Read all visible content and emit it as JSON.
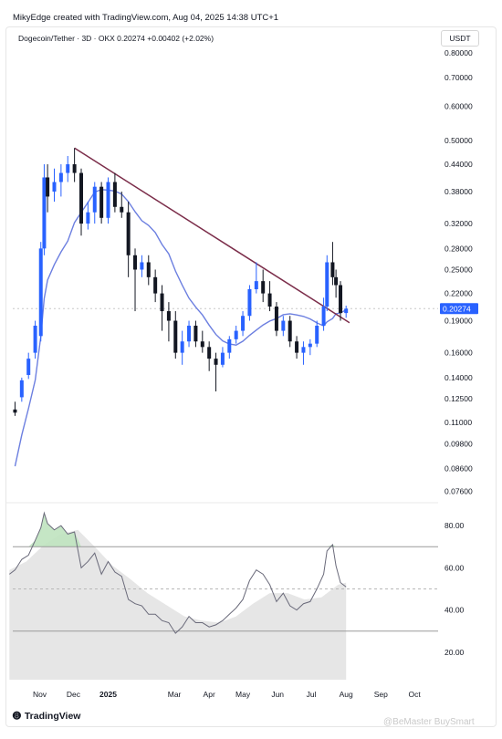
{
  "header": {
    "text": "MikyEdge created with TradingView.com, Aug 04, 2025 14:38 UTC+1"
  },
  "symbol": {
    "text": "Dogecoin/Tether · 3D · OKX  0.20274  +0.00402 (+2.02%)"
  },
  "currency": {
    "label": "USDT"
  },
  "price_axis": {
    "labels": [
      "0.80000",
      "0.70000",
      "0.60000",
      "0.50000",
      "0.44000",
      "0.38000",
      "0.32000",
      "0.28000",
      "0.25000",
      "0.22000",
      "0.19000",
      "0.16000",
      "0.14000",
      "0.12500",
      "0.11000",
      "0.09800",
      "0.08600",
      "0.07600"
    ],
    "current": "0.20274"
  },
  "rsi_axis": {
    "labels": [
      "80.00",
      "60.00",
      "40.00",
      "20.00"
    ]
  },
  "time_axis": {
    "labels": [
      "Nov",
      "Dec",
      "2025",
      "Mar",
      "Apr",
      "May",
      "Jun",
      "Jul",
      "Aug",
      "Sep",
      "Oct"
    ]
  },
  "footer": {
    "brand": "TradingView",
    "watermark": "@BeMaster BuySmart"
  },
  "colors": {
    "up": "#2962ff",
    "down": "#131722",
    "trendline": "#7b2d4a",
    "ma": "#6c7fe0",
    "rsi_line": "#6a6a7a",
    "rsi_fill": "#e6e6e6",
    "rsi_ob_fill": "#bfe3bf"
  },
  "chart_data": [
    {
      "type": "candlestick",
      "title": "Dogecoin/Tether · 3D · OKX",
      "scale": "log",
      "ylim": [
        0.0726,
        0.84
      ],
      "x_range": [
        "2024-10-08",
        "2025-10-22"
      ],
      "candles_approx": [
        {
          "d": "2024-10-10",
          "o": 0.118,
          "h": 0.123,
          "l": 0.114,
          "c": 0.116
        },
        {
          "d": "2024-10-16",
          "o": 0.126,
          "h": 0.14,
          "l": 0.123,
          "c": 0.138
        },
        {
          "d": "2024-10-22",
          "o": 0.142,
          "h": 0.16,
          "l": 0.139,
          "c": 0.155
        },
        {
          "d": "2024-10-28",
          "o": 0.16,
          "h": 0.19,
          "l": 0.155,
          "c": 0.185
        },
        {
          "d": "2024-11-02",
          "o": 0.175,
          "h": 0.29,
          "l": 0.17,
          "c": 0.28
        },
        {
          "d": "2024-11-05",
          "o": 0.28,
          "h": 0.44,
          "l": 0.27,
          "c": 0.41
        },
        {
          "d": "2024-11-08",
          "o": 0.41,
          "h": 0.44,
          "l": 0.34,
          "c": 0.37
        },
        {
          "d": "2024-11-14",
          "o": 0.38,
          "h": 0.43,
          "l": 0.36,
          "c": 0.4
        },
        {
          "d": "2024-11-20",
          "o": 0.4,
          "h": 0.44,
          "l": 0.37,
          "c": 0.42
        },
        {
          "d": "2024-11-26",
          "o": 0.42,
          "h": 0.46,
          "l": 0.4,
          "c": 0.44
        },
        {
          "d": "2024-12-02",
          "o": 0.44,
          "h": 0.48,
          "l": 0.4,
          "c": 0.42
        },
        {
          "d": "2024-12-08",
          "o": 0.42,
          "h": 0.43,
          "l": 0.3,
          "c": 0.32
        },
        {
          "d": "2024-12-14",
          "o": 0.32,
          "h": 0.36,
          "l": 0.31,
          "c": 0.34
        },
        {
          "d": "2024-12-20",
          "o": 0.34,
          "h": 0.4,
          "l": 0.32,
          "c": 0.39
        },
        {
          "d": "2024-12-26",
          "o": 0.39,
          "h": 0.4,
          "l": 0.32,
          "c": 0.33
        },
        {
          "d": "2025-01-01",
          "o": 0.33,
          "h": 0.41,
          "l": 0.32,
          "c": 0.4
        },
        {
          "d": "2025-01-07",
          "o": 0.4,
          "h": 0.42,
          "l": 0.34,
          "c": 0.35
        },
        {
          "d": "2025-01-13",
          "o": 0.35,
          "h": 0.38,
          "l": 0.33,
          "c": 0.34
        },
        {
          "d": "2025-01-19",
          "o": 0.34,
          "h": 0.36,
          "l": 0.24,
          "c": 0.27
        },
        {
          "d": "2025-01-25",
          "o": 0.27,
          "h": 0.28,
          "l": 0.2,
          "c": 0.25
        },
        {
          "d": "2025-01-31",
          "o": 0.25,
          "h": 0.27,
          "l": 0.24,
          "c": 0.26
        },
        {
          "d": "2025-02-06",
          "o": 0.26,
          "h": 0.27,
          "l": 0.23,
          "c": 0.24
        },
        {
          "d": "2025-02-12",
          "o": 0.24,
          "h": 0.25,
          "l": 0.21,
          "c": 0.22
        },
        {
          "d": "2025-02-18",
          "o": 0.22,
          "h": 0.23,
          "l": 0.18,
          "c": 0.2
        },
        {
          "d": "2025-02-24",
          "o": 0.2,
          "h": 0.21,
          "l": 0.17,
          "c": 0.19
        },
        {
          "d": "2025-03-02",
          "o": 0.19,
          "h": 0.2,
          "l": 0.155,
          "c": 0.16
        },
        {
          "d": "2025-03-08",
          "o": 0.16,
          "h": 0.18,
          "l": 0.15,
          "c": 0.17
        },
        {
          "d": "2025-03-14",
          "o": 0.17,
          "h": 0.19,
          "l": 0.165,
          "c": 0.185
        },
        {
          "d": "2025-03-20",
          "o": 0.185,
          "h": 0.19,
          "l": 0.165,
          "c": 0.17
        },
        {
          "d": "2025-03-26",
          "o": 0.17,
          "h": 0.18,
          "l": 0.16,
          "c": 0.165
        },
        {
          "d": "2025-04-01",
          "o": 0.165,
          "h": 0.17,
          "l": 0.145,
          "c": 0.155
        },
        {
          "d": "2025-04-07",
          "o": 0.155,
          "h": 0.16,
          "l": 0.13,
          "c": 0.15
        },
        {
          "d": "2025-04-13",
          "o": 0.15,
          "h": 0.165,
          "l": 0.148,
          "c": 0.16
        },
        {
          "d": "2025-04-19",
          "o": 0.16,
          "h": 0.175,
          "l": 0.155,
          "c": 0.172
        },
        {
          "d": "2025-04-25",
          "o": 0.172,
          "h": 0.185,
          "l": 0.168,
          "c": 0.18
        },
        {
          "d": "2025-05-01",
          "o": 0.18,
          "h": 0.2,
          "l": 0.175,
          "c": 0.195
        },
        {
          "d": "2025-05-07",
          "o": 0.195,
          "h": 0.23,
          "l": 0.19,
          "c": 0.225
        },
        {
          "d": "2025-05-13",
          "o": 0.225,
          "h": 0.26,
          "l": 0.22,
          "c": 0.235
        },
        {
          "d": "2025-05-19",
          "o": 0.235,
          "h": 0.25,
          "l": 0.21,
          "c": 0.22
        },
        {
          "d": "2025-05-25",
          "o": 0.22,
          "h": 0.235,
          "l": 0.2,
          "c": 0.205
        },
        {
          "d": "2025-05-31",
          "o": 0.205,
          "h": 0.21,
          "l": 0.175,
          "c": 0.18
        },
        {
          "d": "2025-06-06",
          "o": 0.18,
          "h": 0.195,
          "l": 0.175,
          "c": 0.19
        },
        {
          "d": "2025-06-12",
          "o": 0.19,
          "h": 0.195,
          "l": 0.165,
          "c": 0.17
        },
        {
          "d": "2025-06-18",
          "o": 0.17,
          "h": 0.175,
          "l": 0.155,
          "c": 0.16
        },
        {
          "d": "2025-06-24",
          "o": 0.16,
          "h": 0.17,
          "l": 0.15,
          "c": 0.165
        },
        {
          "d": "2025-06-30",
          "o": 0.165,
          "h": 0.172,
          "l": 0.158,
          "c": 0.168
        },
        {
          "d": "2025-07-06",
          "o": 0.168,
          "h": 0.19,
          "l": 0.165,
          "c": 0.185
        },
        {
          "d": "2025-07-12",
          "o": 0.185,
          "h": 0.215,
          "l": 0.18,
          "c": 0.205
        },
        {
          "d": "2025-07-15",
          "o": 0.205,
          "h": 0.27,
          "l": 0.2,
          "c": 0.26
        },
        {
          "d": "2025-07-20",
          "o": 0.26,
          "h": 0.29,
          "l": 0.23,
          "c": 0.24
        },
        {
          "d": "2025-07-23",
          "o": 0.24,
          "h": 0.25,
          "l": 0.215,
          "c": 0.23
        },
        {
          "d": "2025-07-27",
          "o": 0.23,
          "h": 0.235,
          "l": 0.19,
          "c": 0.198
        },
        {
          "d": "2025-08-01",
          "o": 0.198,
          "h": 0.206,
          "l": 0.193,
          "c": 0.2027
        }
      ]
    },
    {
      "type": "line",
      "title": "RSI",
      "ylim": [
        7,
        90
      ],
      "levels": [
        70,
        30
      ],
      "x_range": [
        "2024-10-08",
        "2025-10-22"
      ],
      "rsi_approx": [
        {
          "d": "2024-10-05",
          "v": 57
        },
        {
          "d": "2024-10-10",
          "v": 59
        },
        {
          "d": "2024-10-16",
          "v": 64
        },
        {
          "d": "2024-10-22",
          "v": 66
        },
        {
          "d": "2024-10-28",
          "v": 73
        },
        {
          "d": "2024-11-02",
          "v": 79
        },
        {
          "d": "2024-11-05",
          "v": 86
        },
        {
          "d": "2024-11-08",
          "v": 81
        },
        {
          "d": "2024-11-14",
          "v": 78
        },
        {
          "d": "2024-11-20",
          "v": 80
        },
        {
          "d": "2024-11-26",
          "v": 76
        },
        {
          "d": "2024-12-02",
          "v": 77
        },
        {
          "d": "2024-12-08",
          "v": 60
        },
        {
          "d": "2024-12-14",
          "v": 63
        },
        {
          "d": "2024-12-20",
          "v": 67
        },
        {
          "d": "2024-12-26",
          "v": 57
        },
        {
          "d": "2025-01-01",
          "v": 63
        },
        {
          "d": "2025-01-07",
          "v": 58
        },
        {
          "d": "2025-01-13",
          "v": 56
        },
        {
          "d": "2025-01-19",
          "v": 45
        },
        {
          "d": "2025-01-25",
          "v": 43
        },
        {
          "d": "2025-01-31",
          "v": 42
        },
        {
          "d": "2025-02-06",
          "v": 38
        },
        {
          "d": "2025-02-12",
          "v": 38
        },
        {
          "d": "2025-02-18",
          "v": 35
        },
        {
          "d": "2025-02-24",
          "v": 34
        },
        {
          "d": "2025-03-02",
          "v": 29
        },
        {
          "d": "2025-03-08",
          "v": 32
        },
        {
          "d": "2025-03-14",
          "v": 37
        },
        {
          "d": "2025-03-20",
          "v": 34
        },
        {
          "d": "2025-03-26",
          "v": 34
        },
        {
          "d": "2025-04-01",
          "v": 32
        },
        {
          "d": "2025-04-07",
          "v": 33
        },
        {
          "d": "2025-04-13",
          "v": 35
        },
        {
          "d": "2025-04-19",
          "v": 38
        },
        {
          "d": "2025-04-25",
          "v": 41
        },
        {
          "d": "2025-05-01",
          "v": 45
        },
        {
          "d": "2025-05-07",
          "v": 54
        },
        {
          "d": "2025-05-13",
          "v": 59
        },
        {
          "d": "2025-05-19",
          "v": 57
        },
        {
          "d": "2025-05-25",
          "v": 52
        },
        {
          "d": "2025-05-31",
          "v": 44
        },
        {
          "d": "2025-06-06",
          "v": 48
        },
        {
          "d": "2025-06-12",
          "v": 42
        },
        {
          "d": "2025-06-18",
          "v": 40
        },
        {
          "d": "2025-06-24",
          "v": 43
        },
        {
          "d": "2025-06-30",
          "v": 44
        },
        {
          "d": "2025-07-06",
          "v": 50
        },
        {
          "d": "2025-07-12",
          "v": 57
        },
        {
          "d": "2025-07-15",
          "v": 68
        },
        {
          "d": "2025-07-20",
          "v": 71
        },
        {
          "d": "2025-07-23",
          "v": 61
        },
        {
          "d": "2025-07-27",
          "v": 53
        },
        {
          "d": "2025-08-01",
          "v": 51
        }
      ],
      "rsi_ma_approx": [
        {
          "d": "2024-10-05",
          "v": 59
        },
        {
          "d": "2024-10-20",
          "v": 63
        },
        {
          "d": "2024-11-05",
          "v": 71
        },
        {
          "d": "2024-11-20",
          "v": 76
        },
        {
          "d": "2024-12-05",
          "v": 78
        },
        {
          "d": "2024-12-20",
          "v": 70
        },
        {
          "d": "2025-01-05",
          "v": 61
        },
        {
          "d": "2025-01-20",
          "v": 55
        },
        {
          "d": "2025-02-05",
          "v": 48
        },
        {
          "d": "2025-02-20",
          "v": 43
        },
        {
          "d": "2025-03-10",
          "v": 37
        },
        {
          "d": "2025-03-25",
          "v": 35
        },
        {
          "d": "2025-04-10",
          "v": 34
        },
        {
          "d": "2025-04-25",
          "v": 37
        },
        {
          "d": "2025-05-10",
          "v": 43
        },
        {
          "d": "2025-05-25",
          "v": 48
        },
        {
          "d": "2025-06-10",
          "v": 48
        },
        {
          "d": "2025-06-25",
          "v": 45
        },
        {
          "d": "2025-07-10",
          "v": 46
        },
        {
          "d": "2025-07-25",
          "v": 52
        },
        {
          "d": "2025-08-01",
          "v": 53
        }
      ]
    }
  ]
}
